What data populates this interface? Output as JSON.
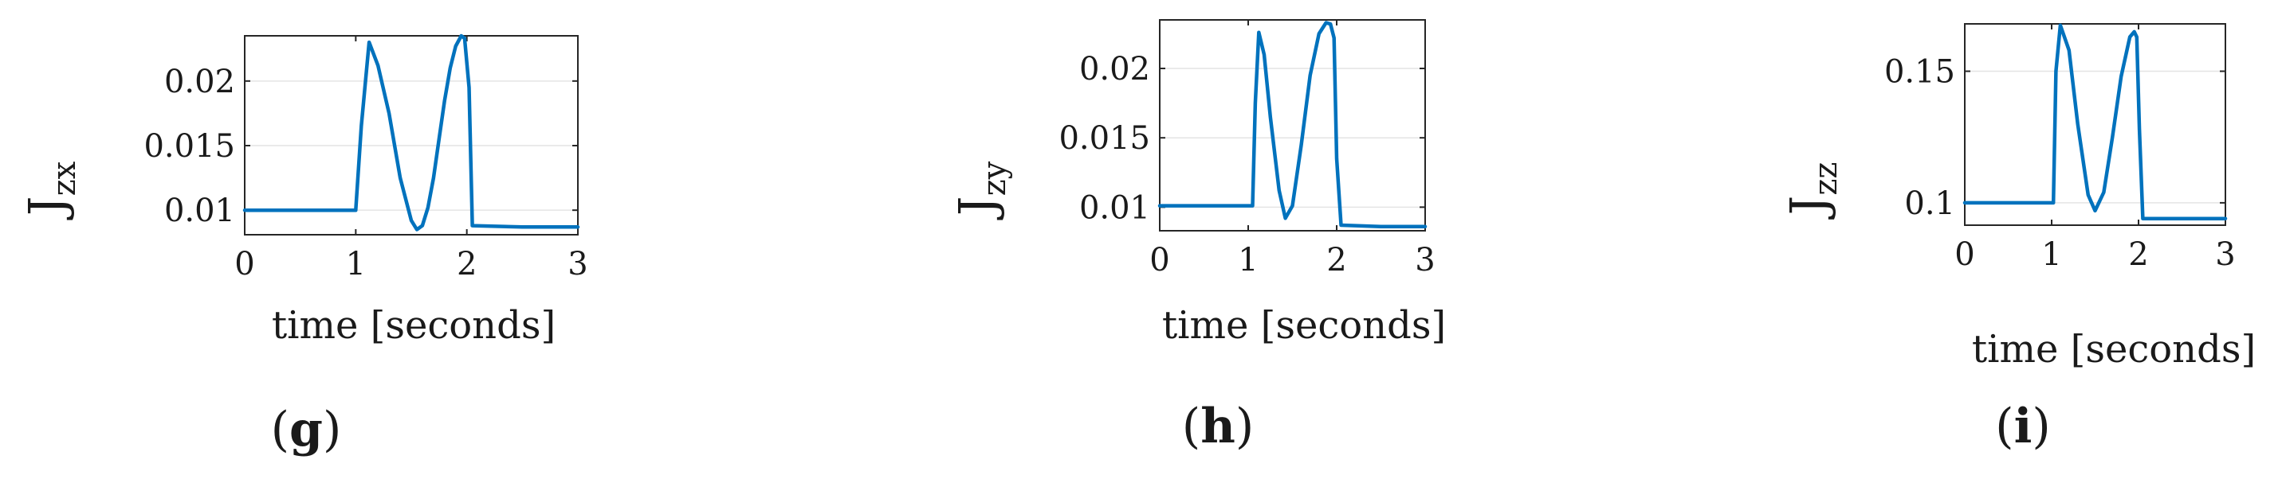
{
  "chart_data": [
    {
      "type": "line",
      "panel_label": "g",
      "xlabel": "time [seconds]",
      "ylabel": {
        "main": "J",
        "sub": "zx"
      },
      "xlim": [
        0,
        3
      ],
      "ylim": [
        0.0081,
        0.0235
      ],
      "xticks": [
        0,
        1,
        2,
        3
      ],
      "xtick_labels": [
        "0",
        "1",
        "2",
        "3"
      ],
      "yticks": [
        0.01,
        0.015,
        0.02
      ],
      "ytick_labels": [
        "0.01",
        "0.015",
        "0.02"
      ],
      "grid": true,
      "color": "#0072BD",
      "series": [
        {
          "x": [
            0,
            1.0,
            1.05,
            1.12,
            1.2,
            1.3,
            1.4,
            1.5,
            1.55,
            1.6,
            1.65,
            1.7,
            1.75,
            1.8,
            1.85,
            1.9,
            1.95,
            1.98,
            2.02,
            2.05,
            2.5,
            3.0
          ],
          "y": [
            0.01,
            0.01,
            0.0165,
            0.023,
            0.0212,
            0.0175,
            0.0125,
            0.0092,
            0.0085,
            0.0088,
            0.0102,
            0.0125,
            0.0155,
            0.0185,
            0.021,
            0.0227,
            0.0235,
            0.0233,
            0.0195,
            0.0088,
            0.0087,
            0.0087
          ]
        }
      ]
    },
    {
      "type": "line",
      "panel_label": "h",
      "xlabel": "time [seconds]",
      "ylabel": {
        "main": "J",
        "sub": "zy"
      },
      "xlim": [
        0,
        3
      ],
      "ylim": [
        0.0083,
        0.0235
      ],
      "xticks": [
        0,
        1,
        2,
        3
      ],
      "xtick_labels": [
        "0",
        "1",
        "2",
        "3"
      ],
      "yticks": [
        0.01,
        0.015,
        0.02
      ],
      "ytick_labels": [
        "0.01",
        "0.015",
        "0.02"
      ],
      "grid": true,
      "color": "#0072BD",
      "series": [
        {
          "x": [
            0,
            1.05,
            1.08,
            1.12,
            1.18,
            1.25,
            1.35,
            1.42,
            1.5,
            1.6,
            1.7,
            1.8,
            1.88,
            1.93,
            1.97,
            2.0,
            2.05,
            2.5,
            3.0
          ],
          "y": [
            0.0101,
            0.0101,
            0.0175,
            0.0226,
            0.021,
            0.0165,
            0.0112,
            0.0092,
            0.0101,
            0.0145,
            0.0195,
            0.0225,
            0.0233,
            0.0232,
            0.0222,
            0.0135,
            0.0087,
            0.0086,
            0.0086
          ]
        }
      ]
    },
    {
      "type": "line",
      "panel_label": "i",
      "xlabel": "time [seconds]",
      "ylabel": {
        "main": "J",
        "sub": "zz"
      },
      "xlim": [
        0,
        3
      ],
      "ylim": [
        0.0915,
        0.168
      ],
      "xticks": [
        0,
        1,
        2,
        3
      ],
      "xtick_labels": [
        "0",
        "1",
        "2",
        "3"
      ],
      "yticks": [
        0.1,
        0.15
      ],
      "ytick_labels": [
        "0.1",
        "0.15"
      ],
      "grid": true,
      "color": "#0072BD",
      "series": [
        {
          "x": [
            0,
            1.02,
            1.05,
            1.1,
            1.2,
            1.3,
            1.42,
            1.5,
            1.6,
            1.7,
            1.8,
            1.9,
            1.95,
            1.98,
            2.01,
            2.05,
            2.5,
            3.0
          ],
          "y": [
            0.1,
            0.1,
            0.15,
            0.1675,
            0.158,
            0.13,
            0.103,
            0.097,
            0.104,
            0.125,
            0.148,
            0.163,
            0.165,
            0.163,
            0.128,
            0.094,
            0.094,
            0.094
          ]
        }
      ]
    }
  ]
}
